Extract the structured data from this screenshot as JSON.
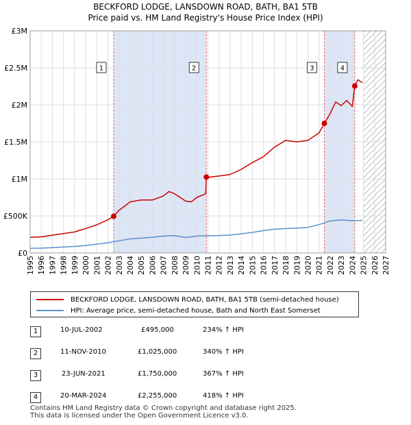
{
  "title_line1": "BECKFORD LODGE, LANSDOWN ROAD, BATH, BA1 5TB",
  "title_line2": "Price paid vs. HM Land Registry's House Price Index (HPI)",
  "legend": {
    "property": "BECKFORD LODGE, LANSDOWN ROAD, BATH, BA1 5TB (semi-detached house)",
    "hpi": "HPI: Average price, semi-detached house, Bath and North East Somerset"
  },
  "colors": {
    "property": "#cc0000",
    "hpi": "#5b8fcf",
    "shade": "#dde6f6",
    "grid": "#dddddd",
    "marker_line": "#e06666"
  },
  "sales": [
    {
      "num": "1",
      "date": "10-JUL-2002",
      "price": "£495,000",
      "hpi": "234% ↑ HPI"
    },
    {
      "num": "2",
      "date": "11-NOV-2010",
      "price": "£1,025,000",
      "hpi": "340% ↑ HPI"
    },
    {
      "num": "3",
      "date": "23-JUN-2021",
      "price": "£1,750,000",
      "hpi": "367% ↑ HPI"
    },
    {
      "num": "4",
      "date": "20-MAR-2024",
      "price": "£2,255,000",
      "hpi": "418% ↑ HPI"
    }
  ],
  "footer_line1": "Contains HM Land Registry data © Crown copyright and database right 2025.",
  "footer_line2": "This data is licensed under the Open Government Licence v3.0.",
  "chart_data": {
    "type": "line",
    "title": "BECKFORD LODGE, LANSDOWN ROAD, BATH, BA1 5TB",
    "subtitle": "Price paid vs. HM Land Registry's House Price Index (HPI)",
    "xlabel": "",
    "ylabel": "",
    "xlim": [
      1995,
      2027
    ],
    "ylim": [
      0,
      3000000
    ],
    "x_ticks": [
      1995,
      1996,
      1997,
      1998,
      1999,
      2000,
      2001,
      2002,
      2003,
      2004,
      2005,
      2006,
      2007,
      2008,
      2009,
      2010,
      2011,
      2012,
      2013,
      2014,
      2015,
      2016,
      2017,
      2018,
      2019,
      2020,
      2021,
      2022,
      2023,
      2024,
      2025,
      2026,
      2027
    ],
    "y_ticks": [
      {
        "value": 0,
        "label": "£0"
      },
      {
        "value": 500000,
        "label": "£500K"
      },
      {
        "value": 1000000,
        "label": "£1M"
      },
      {
        "value": 1500000,
        "label": "£1.5M"
      },
      {
        "value": 2000000,
        "label": "£2M"
      },
      {
        "value": 2500000,
        "label": "£2.5M"
      },
      {
        "value": 3000000,
        "label": "£3M"
      }
    ],
    "grid": true,
    "shaded_periods": [
      [
        2002.52,
        2010.86
      ],
      [
        2021.48,
        2024.22
      ]
    ],
    "future_hatch_from": 2025.0,
    "sale_points": [
      {
        "label": "1",
        "x": 2002.52,
        "y": 495000
      },
      {
        "label": "2",
        "x": 2010.86,
        "y": 1025000
      },
      {
        "label": "3",
        "x": 2021.48,
        "y": 1750000
      },
      {
        "label": "4",
        "x": 2024.22,
        "y": 2255000
      }
    ],
    "series": [
      {
        "name": "BECKFORD LODGE, LANSDOWN ROAD, BATH, BA1 5TB (semi-detached house)",
        "x": [
          1995,
          1996,
          1997,
          1998,
          1999,
          2000,
          2001,
          2002,
          2002.52,
          2003,
          2004,
          2005,
          2006,
          2007,
          2007.5,
          2008,
          2009,
          2009.5,
          2010,
          2010.8,
          2010.86,
          2011,
          2012,
          2013,
          2014,
          2015,
          2016,
          2017,
          2018,
          2019,
          2020,
          2021,
          2021.48,
          2022,
          2022.5,
          2023,
          2023.5,
          2024,
          2024.22,
          2024.5,
          2024.9
        ],
        "values": [
          210000,
          218000,
          240000,
          262000,
          283000,
          330000,
          380000,
          448000,
          495000,
          575000,
          690000,
          715000,
          715000,
          770000,
          830000,
          800000,
          700000,
          690000,
          750000,
          800000,
          1025000,
          1020000,
          1040000,
          1060000,
          1130000,
          1220000,
          1300000,
          1430000,
          1520000,
          1500000,
          1520000,
          1620000,
          1750000,
          1880000,
          2040000,
          1990000,
          2060000,
          1980000,
          2255000,
          2340000,
          2300000
        ]
      },
      {
        "name": "HPI: Average price, semi-detached house, Bath and North East Somerset",
        "x": [
          1995,
          1996,
          1997,
          1998,
          1999,
          2000,
          2001,
          2002,
          2003,
          2004,
          2005,
          2006,
          2007,
          2008,
          2009,
          2010,
          2011,
          2012,
          2013,
          2014,
          2015,
          2016,
          2017,
          2018,
          2019,
          2020,
          2021,
          2022,
          2023,
          2024,
          2024.9
        ],
        "values": [
          63000,
          65000,
          72000,
          80000,
          88000,
          100000,
          118000,
          138000,
          165000,
          190000,
          200000,
          210000,
          228000,
          235000,
          208000,
          228000,
          232000,
          235000,
          242000,
          258000,
          278000,
          302000,
          320000,
          330000,
          335000,
          345000,
          382000,
          432000,
          445000,
          435000,
          440000
        ]
      }
    ]
  }
}
